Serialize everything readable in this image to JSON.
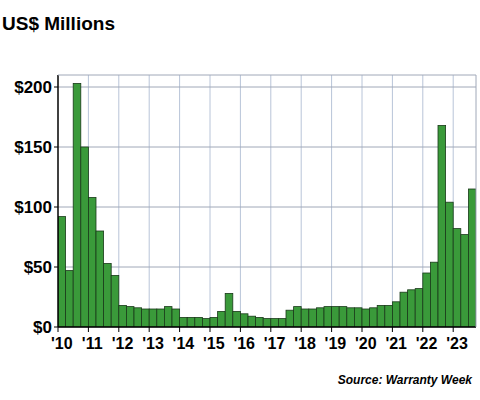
{
  "chart_data": {
    "type": "bar",
    "title": "US$ Millions",
    "source": "Source: Warranty Week",
    "categories": [
      "'10",
      null,
      null,
      null,
      "'11",
      null,
      null,
      null,
      "'12",
      null,
      null,
      null,
      "'13",
      null,
      null,
      null,
      "'14",
      null,
      null,
      null,
      "'15",
      null,
      null,
      null,
      "'16",
      null,
      null,
      null,
      "'17",
      null,
      null,
      null,
      "'18",
      null,
      null,
      null,
      "'19",
      null,
      null,
      null,
      "'20",
      null,
      null,
      null,
      "'21",
      null,
      null,
      null,
      "'22",
      null,
      null,
      null,
      "'23",
      null,
      null
    ],
    "values": [
      92,
      47,
      203,
      150,
      108,
      80,
      53,
      43,
      18,
      17,
      16,
      15,
      15,
      15,
      17,
      15,
      8,
      8,
      8,
      7,
      8,
      13,
      28,
      13,
      11,
      9,
      8,
      7,
      7,
      7,
      14,
      17,
      15,
      15,
      16,
      17,
      17,
      17,
      16,
      16,
      15,
      16,
      18,
      18,
      21,
      29,
      31,
      32,
      45,
      54,
      168,
      104,
      82,
      77,
      115
    ],
    "color": "#3a9a3a",
    "ylim": [
      0,
      210
    ],
    "yticks": [
      {
        "value": 0,
        "label": "$0"
      },
      {
        "value": 50,
        "label": "$50"
      },
      {
        "value": 100,
        "label": "$100"
      },
      {
        "value": 150,
        "label": "$150"
      },
      {
        "value": 200,
        "label": "$200"
      }
    ],
    "grid": true
  }
}
